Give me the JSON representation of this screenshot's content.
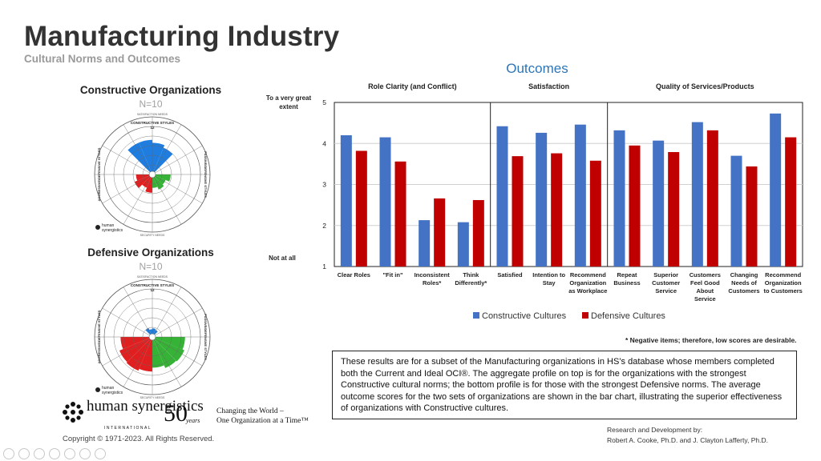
{
  "header": {
    "title": "Manufacturing Industry",
    "subtitle": "Cultural Norms and Outcomes"
  },
  "circumplexes": [
    {
      "title": "Constructive Organizations",
      "n": "N=10",
      "color": "#2e75b6",
      "top_label": "CONSTRUCTIVE STYLES",
      "left_label": "AGGRESSIVE/DEFENSIVE STYLES",
      "right_label": "PASSIVE/DEFENSIVE STYLES",
      "top_needs": "SATISFACTION NEEDS",
      "bottom_needs": "SECURITY NEEDS",
      "center_number": "12",
      "extents": {
        "blue": [
          0.72,
          0.72,
          0.66,
          0.6
        ],
        "green": [
          0.38,
          0.3,
          0.34,
          0.28
        ],
        "red": [
          0.38,
          0.3,
          0.4,
          0.34
        ]
      }
    },
    {
      "title": "Defensive Organizations",
      "n": "N=10",
      "color": "#d91f1f",
      "top_label": "CONSTRUCTIVE STYLES",
      "left_label": "AGGRESSIVE/DEFENSIVE STYLES",
      "right_label": "PASSIVE/DEFENSIVE STYLES",
      "top_needs": "SATISFACTION NEEDS",
      "bottom_needs": "SECURITY NEEDS",
      "center_number": "12",
      "extents": {
        "blue": [
          0.2,
          0.16,
          0.18,
          0.16
        ],
        "green": [
          0.68,
          0.72,
          0.7,
          0.64
        ],
        "red": [
          0.72,
          0.76,
          0.74,
          0.66
        ]
      }
    }
  ],
  "circumplex_small_text": {
    "logo_line1": "human",
    "logo_line2": "synergistics"
  },
  "chart_data": {
    "type": "bar",
    "title": "Outcomes",
    "groups": [
      {
        "label": "Role Clarity (and Conflict)",
        "start": 0,
        "end": 3
      },
      {
        "label": "Satisfaction",
        "start": 4,
        "end": 6
      },
      {
        "label": "Quality of Services/Products",
        "start": 7,
        "end": 11
      }
    ],
    "categories": [
      "Clear Roles",
      "\"Fit in\"",
      "Inconsistent Roles*",
      "Think Differently*",
      "Satisfied",
      "Intention to Stay",
      "Recommend Organization as Workplace",
      "Repeat Business",
      "Superior Customer Service",
      "Customers Feel Good About Service",
      "Changing Needs of Customers",
      "Recommend Organization to Customers"
    ],
    "category_lines": [
      [
        "Clear Roles"
      ],
      [
        "\"Fit in\""
      ],
      [
        "Inconsistent",
        "Roles*"
      ],
      [
        "Think",
        "Differently*"
      ],
      [
        "Satisfied"
      ],
      [
        "Intention to",
        "Stay"
      ],
      [
        "Recommend",
        "Organization",
        "as Workplace"
      ],
      [
        "Repeat",
        "Business"
      ],
      [
        "Superior",
        "Customer",
        "Service"
      ],
      [
        "Customers",
        "Feel Good",
        "About",
        "Service"
      ],
      [
        "Changing",
        "Needs of",
        "Customers"
      ],
      [
        "Recommend",
        "Organization",
        "to Customers"
      ]
    ],
    "series": [
      {
        "name": "Constructive Cultures",
        "color": "#4472c4",
        "values": [
          4.2,
          4.15,
          2.13,
          2.08,
          4.42,
          4.26,
          4.46,
          4.32,
          4.07,
          4.52,
          3.7,
          4.73
        ]
      },
      {
        "name": "Defensive Cultures",
        "color": "#c00000",
        "values": [
          3.82,
          3.56,
          2.66,
          2.62,
          3.69,
          3.76,
          3.58,
          3.95,
          3.79,
          4.32,
          3.44,
          4.15
        ]
      }
    ],
    "ylim": [
      1,
      5
    ],
    "yticks": [
      1,
      2,
      3,
      4,
      5
    ],
    "y_top_label": [
      "To a very great",
      "extent"
    ],
    "y_bottom_label": "Not at all",
    "gridlines": true,
    "legend": "bottom"
  },
  "note": "* Negative items; therefore, low scores are desirable.",
  "description": "These results are for a subset of the Manufacturing organizations in HS’s database whose members completed both the Current and Ideal OCI®. The aggregate profile on top is for the organizations with the strongest Constructive cultural norms; the bottom profile is for those with the strongest Defensive norms. The average outcome scores for the two sets of organizations are shown in the bar chart, illustrating the superior effectiveness of organizations with Constructive cultures.",
  "credits": {
    "line1": "Research and Development by:",
    "line2": "Robert A. Cooke, Ph.D. and J. Clayton Lafferty, Ph.D."
  },
  "footer": {
    "copyright": "Copyright © 1971-2023.  All Rights Reserved.",
    "logo_text": "human synergistics",
    "logo_sub": "INTERNATIONAL",
    "fifty": "50",
    "years": "years",
    "tagline1": "Changing the World –",
    "tagline2": "One Organization at a Time™"
  }
}
